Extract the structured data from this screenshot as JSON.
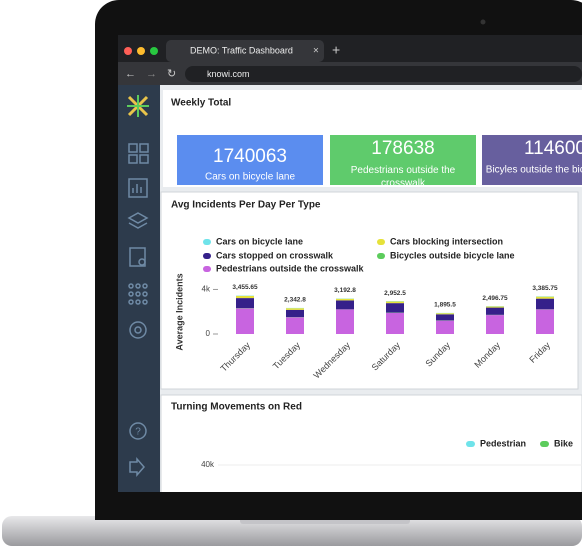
{
  "browser": {
    "tab_title": "DEMO: Traffic Dashboard",
    "url": "knowi.com"
  },
  "weekly_total": {
    "title": "Weekly Total",
    "cards": [
      {
        "value": 1740063,
        "label": "Cars on bicycle lane",
        "color": "#5b8def"
      },
      {
        "value": 178638,
        "label": "Pedestrians outside the crosswalk",
        "color": "#5fcb6c"
      },
      {
        "value": 114600,
        "label": "Bicyles outside the bicycle lane",
        "color": "#675f9e"
      }
    ]
  },
  "incidents_chart": {
    "type": "bar",
    "stacked": true,
    "title": "Avg Incidents Per Day Per Type",
    "y_label": "Average Incidents",
    "categories": [
      "Thursday",
      "Tuesday",
      "Wednesday",
      "Saturday",
      "Sunday",
      "Monday",
      "Friday"
    ],
    "series": [
      {
        "name": "Cars on bicycle lane",
        "color": "#6fe3ea",
        "values": [
          30,
          25,
          25,
          30,
          25,
          25,
          30
        ]
      },
      {
        "name": "Cars blocking intersection",
        "color": "#e6e23a",
        "values": [
          200,
          150,
          150,
          150,
          100,
          100,
          180
        ]
      },
      {
        "name": "Cars stopped on crosswalk",
        "color": "#35208a",
        "values": [
          900,
          650,
          800,
          850,
          550,
          650,
          950
        ]
      },
      {
        "name": "Bicycles outside bicycle lane",
        "color": "#5ccc5c",
        "values": [
          25,
          18,
          18,
          22,
          20,
          22,
          25
        ]
      },
      {
        "name": "Pedestrians outside the crosswalk",
        "color": "#c864e0",
        "values": [
          2300,
          1500,
          2200,
          1900,
          1200,
          1700,
          2200
        ]
      }
    ],
    "totals": [
      3455.65,
      2342.8,
      3192.8,
      2952.5,
      1895.5,
      2496.75,
      3385.75
    ],
    "total_labels": [
      "3,455.65",
      "2,342.8",
      "3,192.8",
      "2,952.5",
      "1,895.5",
      "2,496.75",
      "3,385.75"
    ],
    "ylim": [
      0,
      4400
    ],
    "yticks": [
      0,
      {
        "value": 4000,
        "label": "4k"
      }
    ]
  },
  "turning_chart": {
    "title": "Turning Movements on Red",
    "legend": [
      {
        "name": "Pedestrian",
        "color": "#6fe3ea"
      },
      {
        "name": "Bike",
        "color": "#5ccc5c"
      }
    ],
    "yticks": [
      {
        "value": 40000,
        "label": "40k"
      }
    ]
  }
}
